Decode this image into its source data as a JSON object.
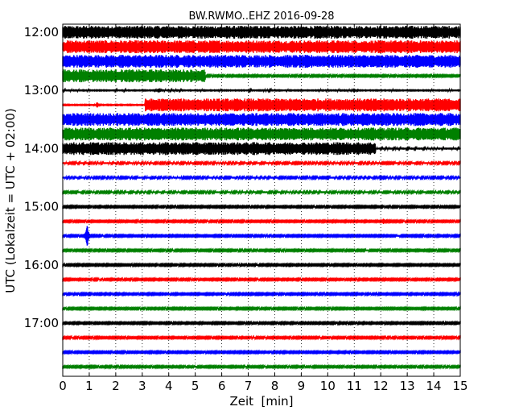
{
  "chart_data": {
    "type": "line",
    "title": "BW.RWMO..EHZ 2016-09-28",
    "xlabel": "Zeit  [min]",
    "ylabel": "UTC (Lokalzeit = UTC + 02:00)",
    "xlim": [
      0,
      15
    ],
    "x_ticks": [
      "0",
      "1",
      "2",
      "3",
      "4",
      "5",
      "6",
      "7",
      "8",
      "9",
      "10",
      "11",
      "12",
      "13",
      "14",
      "15"
    ],
    "y_ticks": [
      {
        "label": "12:00",
        "row": 0
      },
      {
        "label": "13:00",
        "row": 4
      },
      {
        "label": "14:00",
        "row": 8
      },
      {
        "label": "15:00",
        "row": 12
      },
      {
        "label": "16:00",
        "row": 16
      },
      {
        "label": "17:00",
        "row": 20
      }
    ],
    "grid": "vertical dotted at each minute",
    "row_interval_min": 15,
    "colors": [
      "#000000",
      "#ff0000",
      "#0000ff",
      "#008000"
    ],
    "traces": [
      {
        "start": "12:00",
        "amplitude_segments": [
          [
            0,
            15,
            1.0
          ]
        ]
      },
      {
        "start": "12:15",
        "amplitude_segments": [
          [
            0,
            15,
            1.0
          ]
        ]
      },
      {
        "start": "12:30",
        "amplitude_segments": [
          [
            0,
            15,
            1.0
          ]
        ]
      },
      {
        "start": "12:45",
        "amplitude_segments": [
          [
            0,
            5.4,
            1.0
          ],
          [
            5.4,
            15,
            0.12
          ]
        ]
      },
      {
        "start": "13:00",
        "amplitude_segments": [
          [
            0,
            15,
            0.18
          ]
        ]
      },
      {
        "start": "13:15",
        "amplitude_segments": [
          [
            0,
            3.1,
            0.2
          ],
          [
            3.1,
            15,
            1.0
          ]
        ]
      },
      {
        "start": "13:30",
        "amplitude_segments": [
          [
            0,
            15,
            1.0
          ]
        ]
      },
      {
        "start": "13:45",
        "amplitude_segments": [
          [
            0,
            15,
            1.0
          ]
        ]
      },
      {
        "start": "14:00",
        "amplitude_segments": [
          [
            0,
            11.8,
            1.0
          ],
          [
            11.8,
            15,
            0.16
          ]
        ]
      },
      {
        "start": "14:15",
        "amplitude_segments": [
          [
            0,
            15,
            0.14
          ]
        ]
      },
      {
        "start": "14:30",
        "amplitude_segments": [
          [
            0,
            15,
            0.14
          ]
        ]
      },
      {
        "start": "14:45",
        "amplitude_segments": [
          [
            0,
            15,
            0.14
          ]
        ]
      },
      {
        "start": "15:00",
        "amplitude_segments": [
          [
            0,
            15,
            0.12
          ]
        ]
      },
      {
        "start": "15:15",
        "amplitude_segments": [
          [
            0,
            15,
            0.12
          ]
        ]
      },
      {
        "start": "15:30",
        "amplitude_segments": [
          [
            0,
            15,
            0.12
          ]
        ]
      },
      {
        "start": "15:45",
        "amplitude_segments": [
          [
            0,
            15,
            0.12
          ]
        ]
      },
      {
        "start": "16:00",
        "amplitude_segments": [
          [
            0,
            15,
            0.12
          ]
        ]
      },
      {
        "start": "16:15",
        "amplitude_segments": [
          [
            0,
            15,
            0.12
          ]
        ]
      },
      {
        "start": "16:30",
        "amplitude_segments": [
          [
            0,
            15,
            0.12
          ]
        ]
      },
      {
        "start": "16:45",
        "amplitude_segments": [
          [
            0,
            15,
            0.12
          ]
        ]
      },
      {
        "start": "17:00",
        "amplitude_segments": [
          [
            0,
            15,
            0.12
          ]
        ]
      },
      {
        "start": "17:15",
        "amplitude_segments": [
          [
            0,
            15,
            0.12
          ]
        ]
      },
      {
        "start": "17:30",
        "amplitude_segments": [
          [
            0,
            15,
            0.12
          ]
        ]
      },
      {
        "start": "17:45",
        "amplitude_segments": [
          [
            0,
            15,
            0.12
          ]
        ]
      }
    ],
    "events": [
      {
        "start": "15:30",
        "x_min": 0.92,
        "amplitude": 1.9
      },
      {
        "start": "15:15",
        "x_min": 12.1,
        "amplitude": 0.45
      },
      {
        "start": "14:30",
        "x_min": 12.0,
        "amplitude": 0.45
      },
      {
        "start": "13:00",
        "x_min": 11.0,
        "amplitude": 0.4
      },
      {
        "start": "13:00",
        "x_min": 3.6,
        "amplitude": 0.35
      },
      {
        "start": "13:15",
        "x_min": 1.3,
        "amplitude": 0.45
      }
    ]
  }
}
